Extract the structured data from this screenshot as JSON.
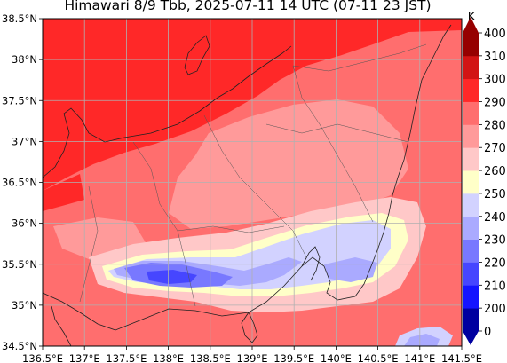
{
  "title": "Himawari 8/9 Tbb, 2025-07-11 14 UTC (07-11 23 JST)",
  "map": {
    "lon_range": [
      136.5,
      141.5
    ],
    "lat_range": [
      34.5,
      38.5
    ],
    "lon_ticks": [
      "136.5°E",
      "137°E",
      "137.5°E",
      "138°E",
      "138.5°E",
      "139°E",
      "139.5°E",
      "140°E",
      "140.5°E",
      "141°E",
      "141.5°E"
    ],
    "lat_ticks": [
      "34.5°N",
      "35°N",
      "35.5°N",
      "36°N",
      "36.5°N",
      "37°N",
      "37.5°N",
      "38°N",
      "38.5°N"
    ],
    "grid": true
  },
  "colorbar": {
    "unit": "K",
    "ticks": [
      "0",
      "200",
      "210",
      "220",
      "230",
      "240",
      "250",
      "260",
      "270",
      "280",
      "290",
      "300",
      "310",
      "400"
    ],
    "colors": [
      "#0000a0",
      "#1414ff",
      "#4646ff",
      "#7878ff",
      "#aaaaff",
      "#d2d2ff",
      "#ffffc8",
      "#ffc8c8",
      "#ff9a9a",
      "#ff6e6e",
      "#ff2828",
      "#d21414",
      "#960000"
    ]
  }
}
